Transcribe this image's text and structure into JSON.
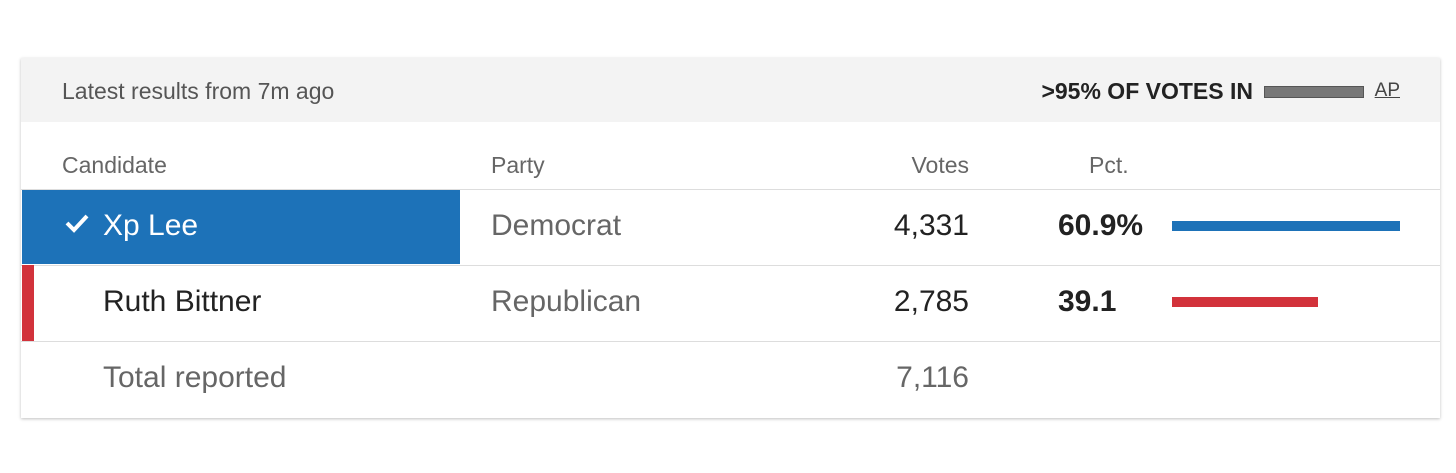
{
  "header": {
    "status": "Latest results from 7m ago",
    "reporting": ">95% OF VOTES IN",
    "source": "AP"
  },
  "table": {
    "columns": [
      "Candidate",
      "Party",
      "Votes",
      "Pct."
    ],
    "rows": [
      {
        "candidate": "Xp Lee",
        "party": "Democrat",
        "votes": "4,331",
        "pct": 60.9,
        "pct_label": "60.9%",
        "winner": true,
        "color": "#1d72b8"
      },
      {
        "candidate": "Ruth Bittner",
        "party": "Republican",
        "votes": "2,785",
        "pct": 39.1,
        "winner": false,
        "color": "#d2323b"
      }
    ],
    "total": {
      "label": "Total reported",
      "votes": "7,116"
    }
  }
}
